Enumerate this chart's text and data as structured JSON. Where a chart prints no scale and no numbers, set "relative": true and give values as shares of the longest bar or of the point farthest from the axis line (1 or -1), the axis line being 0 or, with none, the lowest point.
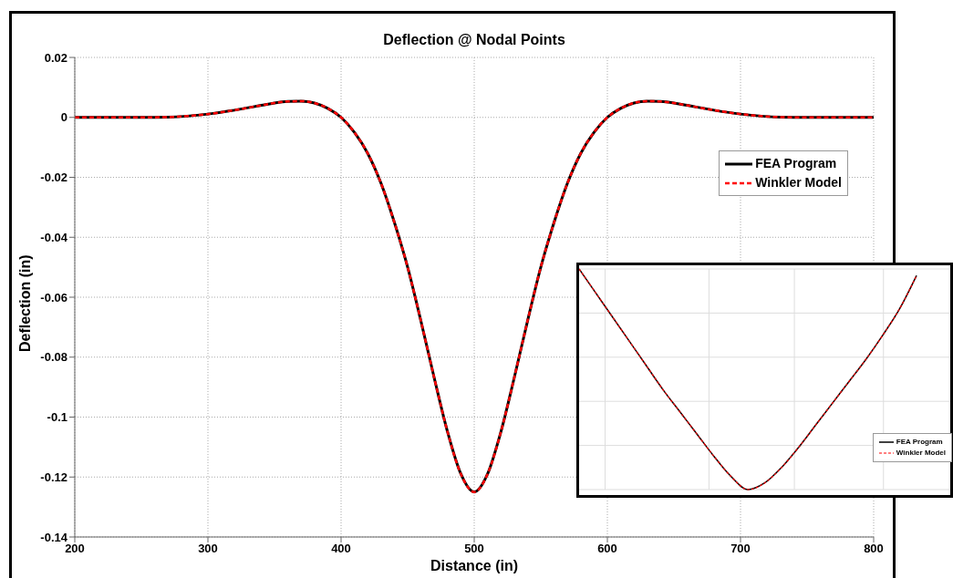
{
  "chart_data": [
    {
      "type": "line",
      "title": "Deflection @ Nodal Points",
      "xlabel": "Distance (in)",
      "ylabel": "Deflection (in)",
      "x": [
        200,
        250,
        270,
        300,
        320,
        340,
        350,
        360,
        370,
        380,
        390,
        400,
        410,
        420,
        430,
        440,
        450,
        460,
        470,
        480,
        490,
        500,
        510,
        520,
        530,
        540,
        550,
        560,
        570,
        580,
        590,
        600,
        610,
        620,
        630,
        640,
        650,
        660,
        680,
        700,
        730,
        750,
        800
      ],
      "series": [
        {
          "name": "FEA Program",
          "color": "#000000",
          "line_style": "solid",
          "values": [
            0,
            0,
            0.0001,
            0.0011,
            0.0024,
            0.004,
            0.0048,
            0.0053,
            0.0054,
            0.0048,
            0.003,
            0,
            -0.005,
            -0.012,
            -0.022,
            -0.035,
            -0.05,
            -0.068,
            -0.087,
            -0.105,
            -0.119,
            -0.125,
            -0.119,
            -0.105,
            -0.087,
            -0.068,
            -0.05,
            -0.035,
            -0.022,
            -0.012,
            -0.005,
            0,
            0.003,
            0.0048,
            0.0054,
            0.0053,
            0.0048,
            0.004,
            0.0024,
            0.0011,
            0.0001,
            0,
            0
          ]
        },
        {
          "name": "Winkler Model",
          "color": "#ff0000",
          "line_style": "dashed",
          "values": [
            0,
            0,
            0.0001,
            0.0011,
            0.0024,
            0.004,
            0.0048,
            0.0053,
            0.0054,
            0.0048,
            0.003,
            0,
            -0.005,
            -0.012,
            -0.022,
            -0.035,
            -0.05,
            -0.068,
            -0.087,
            -0.105,
            -0.119,
            -0.125,
            -0.119,
            -0.105,
            -0.087,
            -0.068,
            -0.05,
            -0.035,
            -0.022,
            -0.012,
            -0.005,
            0,
            0.003,
            0.0048,
            0.0054,
            0.0053,
            0.0048,
            0.004,
            0.0024,
            0.0011,
            0.0001,
            0,
            0
          ]
        }
      ],
      "xlim": [
        200,
        800
      ],
      "xticks": [
        200,
        300,
        400,
        500,
        600,
        700,
        800
      ],
      "ylim": [
        -0.14,
        0.02
      ],
      "yticks": [
        -0.14,
        -0.12,
        -0.1,
        -0.08,
        -0.06,
        -0.04,
        -0.02,
        0,
        0.02
      ],
      "grid": true,
      "legend": "top right",
      "marker": "none"
    },
    {
      "type": "line",
      "relative": true,
      "categories": [
        null,
        null,
        null,
        null,
        null,
        null,
        null,
        null,
        null,
        null,
        null,
        null,
        null,
        null,
        null,
        null,
        null,
        null,
        null,
        null,
        null,
        null,
        null
      ],
      "series": [
        {
          "name": "FEA Program",
          "color": "#000000",
          "line_style": "solid",
          "values": [
            1,
            0.89,
            0.78,
            0.67,
            0.56,
            0.45,
            0.35,
            0.25,
            0.15,
            0.06,
            0,
            0.03,
            0.1,
            0.19,
            0.29,
            0.39,
            0.49,
            0.59,
            0.7,
            0.82,
            0.97,
            null,
            null
          ]
        },
        {
          "name": "Winkler Model",
          "color": "#ff0000",
          "line_style": "dashed",
          "values": [
            1,
            0.89,
            0.78,
            0.67,
            0.56,
            0.45,
            0.35,
            0.25,
            0.15,
            0.06,
            0,
            0.03,
            0.1,
            0.19,
            0.29,
            0.39,
            0.49,
            0.59,
            0.7,
            0.82,
            0.97,
            null,
            null
          ]
        }
      ],
      "grid": true,
      "legend": "bottom right",
      "marker": "none"
    }
  ]
}
